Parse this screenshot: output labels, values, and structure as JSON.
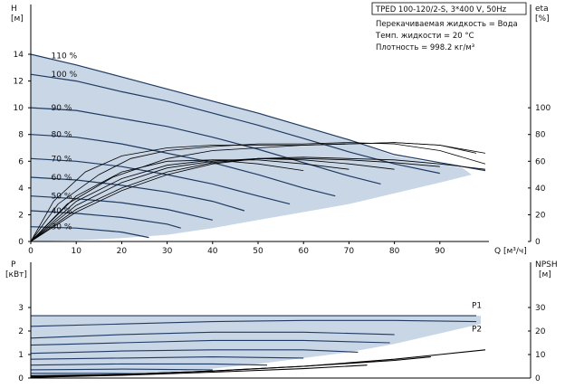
{
  "info": {
    "title": "TPED 100-120/2-S, 3*400 V, 50Hz",
    "lines": [
      "Перекачиваемая жидкость = Вода",
      "Темп. жидкости = 20 °C",
      "Плотность = 998.2 кг/м³"
    ]
  },
  "colors": {
    "fill": "#c9d6e6",
    "curve": "#1f3a62",
    "eff": "#000000",
    "axis": "#000000"
  },
  "chart_data": [
    {
      "type": "line",
      "panel": "head",
      "xlabel": "Q [м³/ч]",
      "ylabel_left": [
        "H",
        "[м]"
      ],
      "ylabel_right": [
        "eta",
        "[%]"
      ],
      "xlim": [
        0,
        100
      ],
      "ylim": [
        0,
        14
      ],
      "ylim_right": [
        0,
        140
      ],
      "xticks": [
        0,
        10,
        20,
        30,
        40,
        50,
        60,
        70,
        80,
        90
      ],
      "yticks": [
        0,
        2,
        4,
        6,
        8,
        10,
        12,
        14
      ],
      "yticks_right": [
        0,
        20,
        40,
        60,
        80,
        100
      ],
      "speed_labels": [
        "110 %",
        "100 %",
        "90 %",
        "80 %",
        "70 %",
        "60 %",
        "50 %",
        "40 %",
        "30 %"
      ],
      "speed_label_points": [
        [
          2.5,
          13.9
        ],
        [
          2.5,
          12.5
        ],
        [
          2.5,
          10.0
        ],
        [
          2.5,
          8.0
        ],
        [
          2.5,
          6.2
        ],
        [
          2.5,
          4.8
        ],
        [
          2.5,
          3.4
        ],
        [
          2.5,
          2.3
        ],
        [
          2.5,
          1.1
        ]
      ],
      "operating_envelope": [
        [
          0,
          14.0
        ],
        [
          10,
          13.2
        ],
        [
          20,
          12.3
        ],
        [
          30,
          11.4
        ],
        [
          40,
          10.5
        ],
        [
          50,
          9.6
        ],
        [
          60,
          8.6
        ],
        [
          70,
          7.6
        ],
        [
          80,
          6.4
        ],
        [
          90,
          5.8
        ],
        [
          95,
          5.5
        ],
        [
          97,
          5.0
        ],
        [
          90,
          4.4
        ],
        [
          80,
          3.6
        ],
        [
          70,
          2.8
        ],
        [
          60,
          2.2
        ],
        [
          50,
          1.6
        ],
        [
          40,
          1.0
        ],
        [
          30,
          0.5
        ],
        [
          20,
          0.25
        ],
        [
          10,
          0.08
        ],
        [
          0,
          0
        ]
      ],
      "series": [
        {
          "values": [
            [
              0,
              14.0
            ],
            [
              10,
              13.2
            ],
            [
              20,
              12.3
            ],
            [
              30,
              11.4
            ],
            [
              40,
              10.5
            ],
            [
              50,
              9.6
            ],
            [
              60,
              8.6
            ],
            [
              70,
              7.6
            ],
            [
              80,
              6.5
            ],
            [
              90,
              5.9
            ],
            [
              100,
              5.3
            ]
          ]
        },
        {
          "values": [
            [
              0,
              12.5
            ],
            [
              10,
              12.0
            ],
            [
              20,
              11.2
            ],
            [
              30,
              10.5
            ],
            [
              40,
              9.6
            ],
            [
              50,
              8.7
            ],
            [
              60,
              7.7
            ],
            [
              70,
              6.7
            ],
            [
              80,
              5.8
            ],
            [
              90,
              5.1
            ]
          ]
        },
        {
          "values": [
            [
              0,
              10.0
            ],
            [
              10,
              9.8
            ],
            [
              20,
              9.2
            ],
            [
              30,
              8.6
            ],
            [
              40,
              7.8
            ],
            [
              50,
              6.9
            ],
            [
              60,
              5.9
            ],
            [
              70,
              4.9
            ],
            [
              77,
              4.3
            ]
          ]
        },
        {
          "values": [
            [
              0,
              8.0
            ],
            [
              10,
              7.8
            ],
            [
              20,
              7.3
            ],
            [
              30,
              6.6
            ],
            [
              40,
              5.9
            ],
            [
              50,
              5.0
            ],
            [
              60,
              4.0
            ],
            [
              67,
              3.4
            ]
          ]
        },
        {
          "values": [
            [
              0,
              6.2
            ],
            [
              10,
              6.0
            ],
            [
              20,
              5.6
            ],
            [
              30,
              5.0
            ],
            [
              40,
              4.3
            ],
            [
              50,
              3.4
            ],
            [
              57,
              2.8
            ]
          ]
        },
        {
          "values": [
            [
              0,
              4.8
            ],
            [
              10,
              4.6
            ],
            [
              20,
              4.2
            ],
            [
              30,
              3.7
            ],
            [
              40,
              3.0
            ],
            [
              47,
              2.3
            ]
          ]
        },
        {
          "values": [
            [
              0,
              3.4
            ],
            [
              10,
              3.2
            ],
            [
              20,
              2.9
            ],
            [
              30,
              2.4
            ],
            [
              40,
              1.6
            ]
          ]
        },
        {
          "values": [
            [
              0,
              2.3
            ],
            [
              10,
              2.1
            ],
            [
              20,
              1.8
            ],
            [
              30,
              1.3
            ],
            [
              33,
              1.0
            ]
          ]
        },
        {
          "values": [
            [
              0,
              1.1
            ],
            [
              10,
              1.0
            ],
            [
              20,
              0.7
            ],
            [
              26,
              0.3
            ]
          ]
        }
      ],
      "efficiency_series": [
        {
          "values": [
            [
              0,
              0
            ],
            [
              10,
              22
            ],
            [
              20,
              38
            ],
            [
              30,
              50
            ],
            [
              40,
              58
            ],
            [
              50,
              62
            ],
            [
              60,
              63
            ],
            [
              70,
              62
            ],
            [
              80,
              61
            ],
            [
              90,
              58
            ],
            [
              100,
              54
            ]
          ]
        },
        {
          "values": [
            [
              0,
              0
            ],
            [
              10,
              24
            ],
            [
              20,
              40
            ],
            [
              30,
              52
            ],
            [
              40,
              59
            ],
            [
              50,
              62
            ],
            [
              60,
              62
            ],
            [
              70,
              61
            ],
            [
              80,
              59
            ],
            [
              90,
              56
            ]
          ]
        },
        {
          "values": [
            [
              0,
              0
            ],
            [
              10,
              27
            ],
            [
              20,
              44
            ],
            [
              30,
              55
            ],
            [
              40,
              60
            ],
            [
              50,
              62
            ],
            [
              60,
              61
            ],
            [
              70,
              58
            ],
            [
              80,
              54
            ]
          ]
        },
        {
          "values": [
            [
              0,
              0
            ],
            [
              10,
              30
            ],
            [
              20,
              47
            ],
            [
              30,
              57
            ],
            [
              40,
              61
            ],
            [
              50,
              61
            ],
            [
              60,
              58
            ],
            [
              70,
              54
            ]
          ]
        },
        {
          "values": [
            [
              0,
              0
            ],
            [
              10,
              34
            ],
            [
              20,
              52
            ],
            [
              30,
              60
            ],
            [
              40,
              61
            ],
            [
              50,
              58
            ],
            [
              60,
              53
            ]
          ]
        },
        {
          "values": [
            [
              0,
              0
            ],
            [
              5,
              30
            ],
            [
              12,
              52
            ],
            [
              20,
              64
            ],
            [
              30,
              70
            ],
            [
              40,
              72
            ],
            [
              50,
              72
            ],
            [
              60,
              72
            ],
            [
              70,
              73
            ],
            [
              80,
              74
            ],
            [
              90,
              72
            ],
            [
              98,
              66
            ]
          ]
        },
        {
          "values": [
            [
              0,
              0
            ],
            [
              6,
              28
            ],
            [
              15,
              50
            ],
            [
              22,
              62
            ],
            [
              30,
              68
            ],
            [
              40,
              71
            ],
            [
              50,
              73
            ],
            [
              60,
              73
            ],
            [
              70,
              74
            ],
            [
              80,
              73
            ],
            [
              90,
              68
            ],
            [
              100,
              58
            ]
          ]
        },
        {
          "values": [
            [
              0,
              0
            ],
            [
              8,
              28
            ],
            [
              18,
              48
            ],
            [
              30,
              62
            ],
            [
              40,
              68
            ],
            [
              50,
              70
            ],
            [
              60,
              72
            ],
            [
              70,
              73
            ],
            [
              80,
              74
            ],
            [
              90,
              72
            ],
            [
              100,
              66
            ]
          ]
        }
      ]
    },
    {
      "type": "line",
      "panel": "power",
      "xlabel": "",
      "ylabel_left": [
        "P",
        "[кВт]"
      ],
      "ylabel_right": [
        "NPSH",
        "[м]"
      ],
      "xlim": [
        0,
        100
      ],
      "ylim": [
        0,
        3
      ],
      "ylim_right": [
        0,
        30
      ],
      "yticks": [
        0,
        1,
        2,
        3
      ],
      "yticks_right": [
        0,
        10,
        20,
        30
      ],
      "series_labels": [
        "P1",
        "P2"
      ],
      "series_label_points": [
        [
          99,
          2.9
        ],
        [
          99,
          1.9
        ]
      ],
      "operating_envelope": [
        [
          0,
          2.65
        ],
        [
          99,
          2.65
        ],
        [
          99,
          2.3
        ],
        [
          90,
          1.9
        ],
        [
          80,
          1.45
        ],
        [
          70,
          1.1
        ],
        [
          60,
          0.85
        ],
        [
          50,
          0.6
        ],
        [
          40,
          0.4
        ],
        [
          30,
          0.25
        ],
        [
          20,
          0.12
        ],
        [
          10,
          0.05
        ],
        [
          0,
          0.02
        ]
      ],
      "series": [
        {
          "values": [
            [
              0,
              2.65
            ],
            [
              20,
              2.65
            ],
            [
              40,
              2.65
            ],
            [
              60,
              2.65
            ],
            [
              80,
              2.65
            ],
            [
              98,
              2.65
            ]
          ]
        },
        {
          "values": [
            [
              0,
              2.2
            ],
            [
              20,
              2.3
            ],
            [
              40,
              2.4
            ],
            [
              60,
              2.45
            ],
            [
              80,
              2.45
            ],
            [
              98,
              2.4
            ]
          ]
        },
        {
          "values": [
            [
              0,
              1.7
            ],
            [
              20,
              1.85
            ],
            [
              40,
              1.95
            ],
            [
              60,
              1.95
            ],
            [
              80,
              1.85
            ]
          ]
        },
        {
          "values": [
            [
              0,
              1.4
            ],
            [
              20,
              1.5
            ],
            [
              40,
              1.6
            ],
            [
              60,
              1.6
            ],
            [
              79,
              1.5
            ]
          ]
        },
        {
          "values": [
            [
              0,
              1.05
            ],
            [
              20,
              1.15
            ],
            [
              40,
              1.2
            ],
            [
              60,
              1.2
            ],
            [
              72,
              1.1
            ]
          ]
        },
        {
          "values": [
            [
              0,
              0.8
            ],
            [
              20,
              0.85
            ],
            [
              40,
              0.9
            ],
            [
              60,
              0.85
            ]
          ]
        },
        {
          "values": [
            [
              0,
              0.55
            ],
            [
              20,
              0.6
            ],
            [
              40,
              0.6
            ],
            [
              52,
              0.55
            ]
          ]
        },
        {
          "values": [
            [
              0,
              0.35
            ],
            [
              20,
              0.38
            ],
            [
              40,
              0.35
            ]
          ]
        },
        {
          "values": [
            [
              0,
              0.2
            ],
            [
              15,
              0.2
            ],
            [
              28,
              0.18
            ]
          ]
        }
      ],
      "npsh_series": [
        {
          "values": [
            [
              0,
              1
            ],
            [
              20,
              1.5
            ],
            [
              40,
              3
            ],
            [
              60,
              5
            ],
            [
              80,
              8
            ],
            [
              90,
              10
            ],
            [
              100,
              12
            ]
          ]
        },
        {
          "values": [
            [
              0,
              0.5
            ],
            [
              20,
              1.5
            ],
            [
              40,
              3
            ],
            [
              60,
              5
            ],
            [
              80,
              7.5
            ],
            [
              88,
              9
            ]
          ]
        },
        {
          "values": [
            [
              0,
              0.3
            ],
            [
              20,
              1.2
            ],
            [
              40,
              2.5
            ],
            [
              60,
              4
            ],
            [
              74,
              5.5
            ]
          ]
        }
      ]
    }
  ]
}
